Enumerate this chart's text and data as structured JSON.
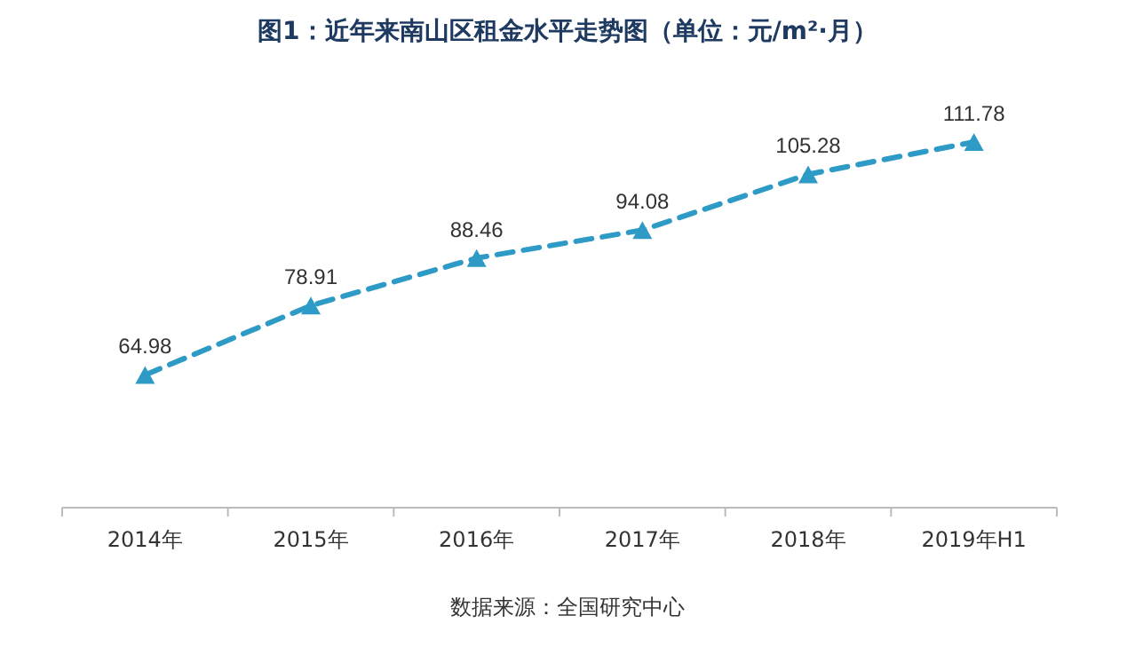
{
  "chart_data": {
    "type": "line",
    "title": "图1：近年来南山区租金水平走势图（单位：元/m²·月）",
    "categories": [
      "2014年",
      "2015年",
      "2016年",
      "2017年",
      "2018年",
      "2019年H1"
    ],
    "series": [
      {
        "color": "#2e9bc6",
        "values": [
          64.98,
          78.91,
          88.46,
          94.08,
          105.28,
          111.78
        ]
      }
    ],
    "tick_labels": "x",
    "data_labels": true,
    "marker": "triangle",
    "line_style": "dashed",
    "annotations": [
      "数据来源：全国研究中心"
    ]
  }
}
